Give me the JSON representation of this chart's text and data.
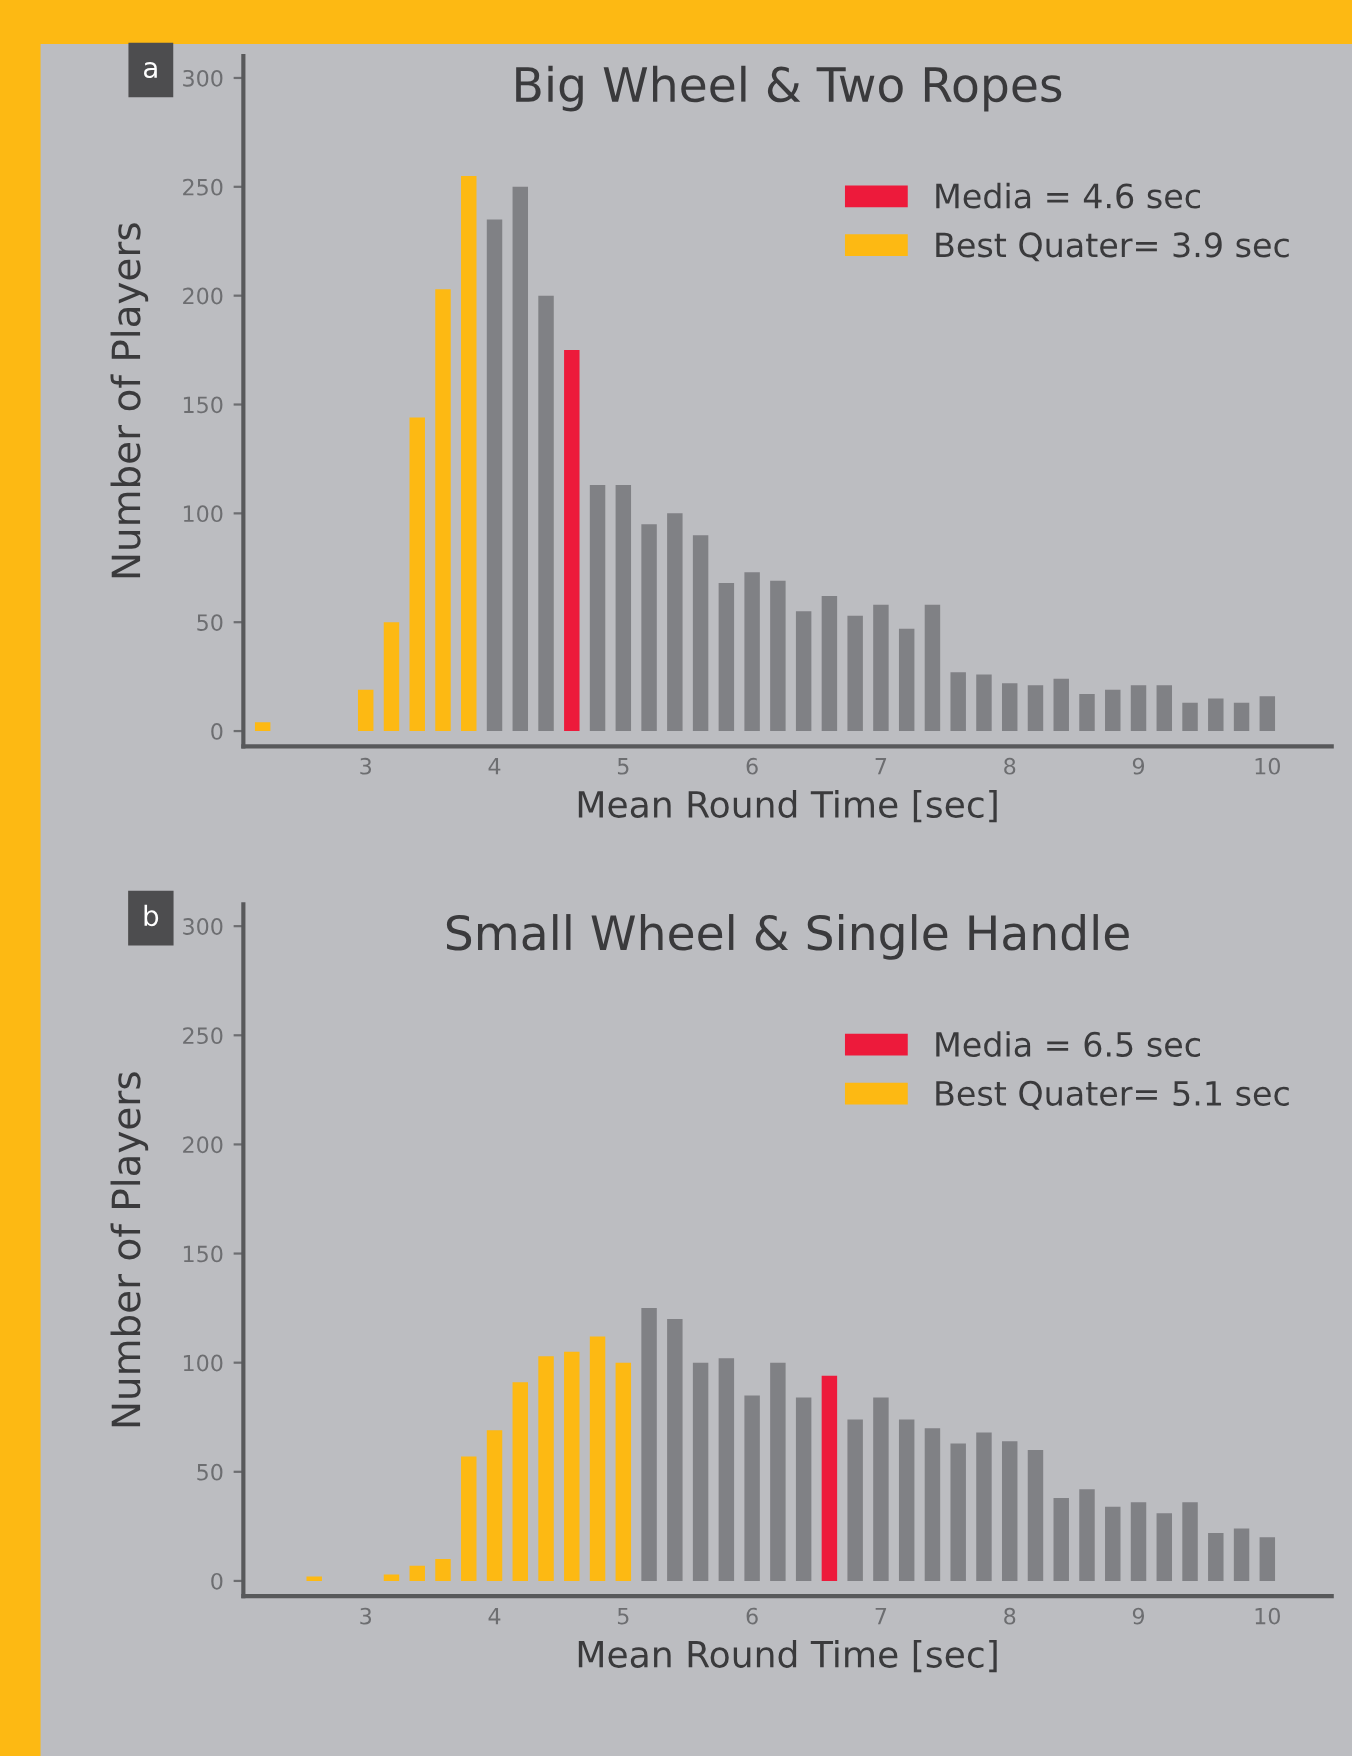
{
  "chart_data": [
    {
      "type": "histogram",
      "title": "Big Wheel & Two Ropes",
      "xlabel": "Mean Round Time [sec]",
      "ylabel": "Number of Players",
      "annotations": [
        "a"
      ],
      "bins": [
        2.1,
        2.3,
        2.5,
        2.7,
        2.9,
        3.1,
        3.3,
        3.5,
        3.7,
        3.9,
        4.1,
        4.3,
        4.5,
        4.7,
        4.9,
        5.1,
        5.3,
        5.5,
        5.7,
        5.9,
        6.1,
        6.3,
        6.5,
        6.7,
        6.9,
        7.1,
        7.3,
        7.5,
        7.7,
        7.9,
        8.1,
        8.3,
        8.5,
        8.7,
        8.9,
        9.1,
        9.3,
        9.5,
        9.7,
        9.9,
        10.1
      ],
      "series": [
        {
          "color": "#808185",
          "values": [
            null,
            null,
            null,
            null,
            null,
            null,
            null,
            null,
            null,
            235,
            250,
            200,
            null,
            113,
            113,
            95,
            100,
            90,
            68,
            73,
            69,
            55,
            62,
            53,
            58,
            47,
            58,
            27,
            26,
            22,
            21,
            24,
            17,
            19,
            21,
            21,
            13,
            15,
            13,
            16
          ]
        },
        {
          "name": "Media = 4.6 sec",
          "color": "#ed1a3b",
          "values": [
            null,
            null,
            null,
            null,
            null,
            null,
            null,
            null,
            null,
            null,
            null,
            null,
            175,
            null,
            null,
            null,
            null,
            null,
            null,
            null,
            null,
            null,
            null,
            null,
            null,
            null,
            null,
            null,
            null,
            null,
            null,
            null,
            null,
            null,
            null,
            null,
            null,
            null,
            null,
            null
          ]
        },
        {
          "name": "Best Quater= 3.9 sec",
          "color": "#fdb913",
          "values": [
            4,
            0,
            0,
            0,
            19,
            50,
            144,
            203,
            255,
            null,
            null,
            null,
            null,
            null,
            null,
            null,
            null,
            null,
            null,
            null,
            null,
            null,
            null,
            null,
            null,
            null,
            null,
            null,
            null,
            null,
            null,
            null,
            null,
            null,
            null,
            null,
            null,
            null,
            null,
            null
          ]
        }
      ],
      "xlim": [
        2.05,
        10.5
      ],
      "xticks": [
        3,
        4,
        5,
        6,
        7,
        8,
        9,
        10
      ],
      "ylim": [
        -7,
        310
      ],
      "yticks": [
        0,
        50,
        100,
        150,
        200,
        250,
        300
      ],
      "grid": false,
      "legend": "top right"
    },
    {
      "type": "histogram",
      "title": "Small Wheel & Single Handle",
      "xlabel": "Mean Round Time [sec]",
      "ylabel": "Number of Players",
      "annotations": [
        "b"
      ],
      "bins": [
        2.5,
        2.7,
        2.9,
        3.1,
        3.3,
        3.5,
        3.7,
        3.9,
        4.1,
        4.3,
        4.5,
        4.7,
        4.9,
        5.1,
        5.3,
        5.5,
        5.7,
        5.9,
        6.1,
        6.3,
        6.5,
        6.7,
        6.9,
        7.1,
        7.3,
        7.5,
        7.7,
        7.9,
        8.1,
        8.3,
        8.5,
        8.7,
        8.9,
        9.1,
        9.3,
        9.5,
        9.7,
        9.9,
        10.1
      ],
      "series": [
        {
          "color": "#808185",
          "values": [
            null,
            null,
            null,
            null,
            null,
            null,
            null,
            null,
            null,
            null,
            null,
            null,
            null,
            125,
            120,
            100,
            102,
            85,
            100,
            84,
            null,
            74,
            84,
            74,
            70,
            63,
            68,
            64,
            60,
            38,
            42,
            34,
            36,
            31,
            36,
            22,
            24,
            20
          ]
        },
        {
          "name": "Media = 6.5 sec",
          "color": "#ed1a3b",
          "values": [
            null,
            null,
            null,
            null,
            null,
            null,
            null,
            null,
            null,
            null,
            null,
            null,
            null,
            null,
            null,
            null,
            null,
            null,
            null,
            null,
            94,
            null,
            null,
            null,
            null,
            null,
            null,
            null,
            null,
            null,
            null,
            null,
            null,
            null,
            null,
            null,
            null,
            null
          ]
        },
        {
          "name": "Best Quater= 5.1 sec",
          "color": "#fdb913",
          "values": [
            2,
            0,
            0,
            3,
            7,
            10,
            57,
            69,
            91,
            103,
            105,
            112,
            100,
            null,
            null,
            null,
            null,
            null,
            null,
            null,
            null,
            null,
            null,
            null,
            null,
            null,
            null,
            null,
            null,
            null,
            null,
            null,
            null,
            null,
            null,
            null,
            null,
            null
          ]
        }
      ],
      "xlim": [
        2.05,
        10.5
      ],
      "xticks": [
        3,
        4,
        5,
        6,
        7,
        8,
        9,
        10
      ],
      "ylim": [
        -7,
        310
      ],
      "yticks": [
        0,
        50,
        100,
        150,
        200,
        250,
        300
      ],
      "grid": false,
      "legend": "top right"
    }
  ]
}
